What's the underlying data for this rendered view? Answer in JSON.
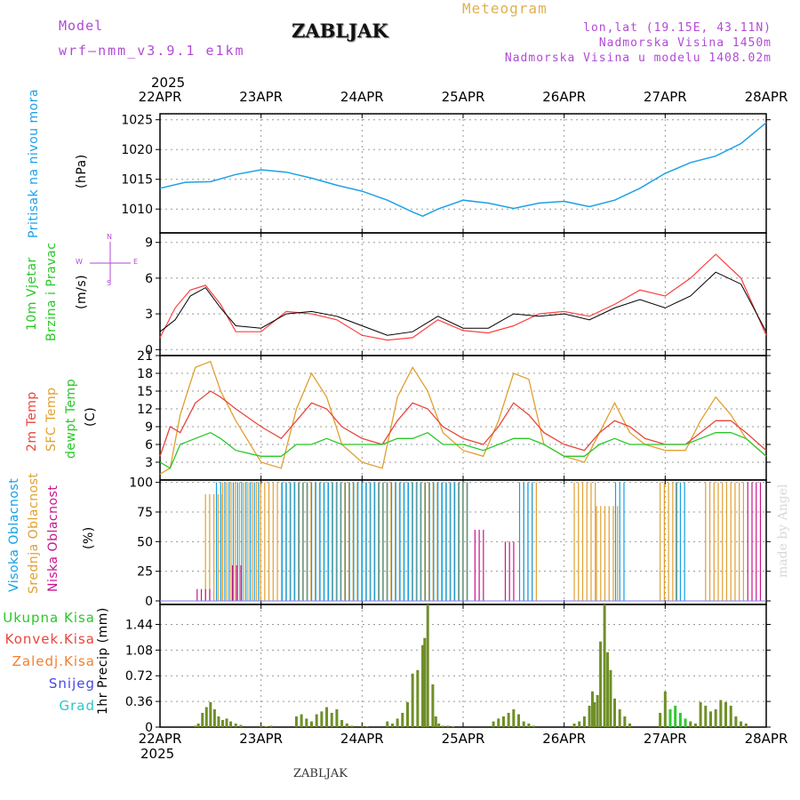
{
  "header": {
    "model_label": "Model",
    "model_name": "wrf–nmm_v3.9.1  e1km",
    "station": "ZABLJAK",
    "meteogram": "Meteogram",
    "lonlat": "lon,lat (19.15E, 43.11N)",
    "elevation": "Nadmorska Visina 1450m",
    "model_elevation": "Nadmorska Visina u modelu 1408.02m",
    "year_top": "2025",
    "year_bottom": "2025",
    "footer_station": "ZABLJAK",
    "credit": "made by Angel"
  },
  "colors": {
    "pressure": "#1ea0e6",
    "temp2m": "#e8463c",
    "sfc": "#e0a030",
    "dewpt": "#28c828",
    "wind_speed": "#000000",
    "gust": "#ff4040",
    "low_cloud": "#c8148c",
    "mid_cloud": "#e0a030",
    "high_cloud": "#14a0e6",
    "precip_total": "#32c832",
    "precip_conv": "#c83c3c",
    "header_purple": "#b14ad6",
    "header_gold": "#e0b050"
  },
  "chart_data": [
    {
      "type": "line",
      "id": "pressure",
      "ylabel": "Pritisak na nivou mora",
      "unit": "(hPa)",
      "x_ticks": [
        "22APR",
        "23APR",
        "24APR",
        "25APR",
        "26APR",
        "27APR",
        "28APR"
      ],
      "ylim": [
        1006,
        1026
      ],
      "yticks": [
        1010,
        1015,
        1020,
        1025
      ],
      "x": [
        0,
        0.25,
        0.5,
        0.75,
        1.0,
        1.25,
        1.5,
        1.75,
        2.0,
        2.25,
        2.5,
        2.6,
        2.75,
        3.0,
        3.25,
        3.5,
        3.75,
        4.0,
        4.25,
        4.5,
        4.75,
        5.0,
        5.25,
        5.5,
        5.75,
        6.0
      ],
      "series": [
        {
          "name": "Pritisak na nivou mora",
          "values": [
            1013.5,
            1014.5,
            1014.6,
            1015.8,
            1016.6,
            1016.2,
            1015.2,
            1014.0,
            1013.0,
            1011.5,
            1009.5,
            1008.8,
            1010.0,
            1011.5,
            1011.0,
            1010.1,
            1011.0,
            1011.3,
            1010.4,
            1011.5,
            1013.5,
            1016.0,
            1017.8,
            1018.9,
            1021.0,
            1024.5
          ]
        }
      ],
      "grid": true
    },
    {
      "type": "line",
      "id": "wind",
      "ylabel": "10m Vjetar",
      "ylabel2": "Brzina i Pravac",
      "unit": "(m/s)",
      "compass": {
        "n": "N",
        "s": "S",
        "w": "W",
        "e": "E"
      },
      "ylim": [
        -0.5,
        9.8
      ],
      "yticks": [
        0,
        3,
        6,
        9
      ],
      "x": [
        0,
        0.15,
        0.3,
        0.45,
        0.6,
        0.75,
        1.0,
        1.25,
        1.5,
        1.75,
        2.0,
        2.25,
        2.5,
        2.75,
        3.0,
        3.25,
        3.5,
        3.75,
        4.0,
        4.25,
        4.5,
        4.75,
        5.0,
        5.25,
        5.5,
        5.75,
        6.0
      ],
      "series": [
        {
          "name": "Wind speed",
          "values": [
            1.5,
            2.5,
            4.5,
            5.2,
            3.5,
            2.0,
            1.8,
            3.0,
            3.2,
            2.8,
            2.0,
            1.2,
            1.5,
            2.8,
            1.8,
            1.8,
            3.0,
            2.8,
            3.0,
            2.5,
            3.5,
            4.2,
            3.5,
            4.5,
            6.5,
            5.5,
            1.5
          ]
        },
        {
          "name": "Gust",
          "values": [
            1.0,
            3.5,
            5.0,
            5.4,
            3.8,
            1.5,
            1.5,
            3.2,
            3.0,
            2.5,
            1.2,
            0.8,
            1.0,
            2.5,
            1.6,
            1.4,
            2.0,
            3.0,
            3.2,
            2.8,
            3.8,
            5.0,
            4.5,
            6.0,
            8.0,
            6.0,
            1.2
          ]
        }
      ],
      "grid": true
    },
    {
      "type": "line",
      "id": "temperature",
      "ylabel": "2m Temp",
      "ylabel2": "SFC Temp",
      "ylabel3": "dewpt Temp",
      "unit": "(C)",
      "ylim": [
        0,
        21
      ],
      "yticks": [
        3,
        6,
        9,
        12,
        15,
        18,
        21
      ],
      "x": [
        0,
        0.1,
        0.2,
        0.35,
        0.5,
        0.6,
        0.75,
        1.0,
        1.2,
        1.35,
        1.5,
        1.65,
        1.8,
        2.0,
        2.2,
        2.35,
        2.5,
        2.65,
        2.8,
        3.0,
        3.2,
        3.35,
        3.5,
        3.65,
        3.8,
        4.0,
        4.2,
        4.35,
        4.5,
        4.65,
        4.8,
        5.0,
        5.2,
        5.35,
        5.5,
        5.65,
        5.8,
        6.0
      ],
      "series": [
        {
          "name": "2m Temp",
          "values": [
            4,
            9,
            8,
            13,
            15,
            14,
            12,
            9,
            7,
            10,
            13,
            12,
            9,
            7,
            6,
            10,
            13,
            12,
            9,
            7,
            6,
            9,
            13,
            11,
            8,
            6,
            5,
            8,
            10,
            9,
            7,
            6,
            6,
            8,
            10,
            10,
            8,
            5
          ]
        },
        {
          "name": "SFC Temp",
          "values": [
            1,
            2,
            11,
            19,
            20,
            15,
            10,
            3,
            2,
            12,
            18,
            14,
            6,
            3,
            2,
            14,
            19,
            15,
            8,
            5,
            4,
            10,
            18,
            17,
            6,
            4,
            3,
            8,
            13,
            8,
            6,
            5,
            5,
            10,
            14,
            11,
            7,
            4
          ]
        },
        {
          "name": "dewpt Temp",
          "values": [
            3,
            2,
            6,
            7,
            8,
            7,
            5,
            4,
            4,
            6,
            6,
            7,
            6,
            6,
            6,
            7,
            7,
            8,
            6,
            6,
            5,
            6,
            7,
            7,
            6,
            4,
            4,
            6,
            7,
            6,
            6,
            6,
            6,
            7,
            8,
            8,
            7,
            4
          ]
        }
      ],
      "grid": true
    },
    {
      "type": "bar",
      "id": "clouds",
      "ylabel": "Visoka Oblacnost",
      "ylabel2": "Srednja Oblacnost",
      "ylabel3": "Niska Oblacnost",
      "unit": "(%)",
      "ylim": [
        -3,
        102
      ],
      "yticks": [
        0,
        25,
        50,
        75,
        100
      ],
      "note": "hourly cloud cover; values read approximately",
      "series": [
        {
          "name": "Srednja Oblacnost",
          "segments": [
            [
              0.45,
              0.62,
              90
            ],
            [
              0.62,
              3.05,
              100
            ],
            [
              3.6,
              3.75,
              100
            ],
            [
              4.1,
              4.32,
              100
            ],
            [
              4.32,
              4.55,
              80
            ],
            [
              4.95,
              5.15,
              100
            ],
            [
              5.4,
              5.8,
              100
            ]
          ]
        },
        {
          "name": "Visoka Oblacnost",
          "segments": [
            [
              0.55,
              1.0,
              100
            ],
            [
              1.2,
              3.05,
              100
            ],
            [
              3.55,
              3.7,
              100
            ],
            [
              4.5,
              4.6,
              100
            ],
            [
              5.1,
              5.2,
              100
            ]
          ]
        },
        {
          "name": "Niska Oblacnost",
          "segments": [
            [
              0.35,
              0.5,
              10
            ],
            [
              0.7,
              0.8,
              30
            ],
            [
              3.1,
              3.2,
              60
            ],
            [
              3.4,
              3.5,
              50
            ],
            [
              5.8,
              5.95,
              100
            ]
          ]
        }
      ],
      "grid": true
    },
    {
      "type": "bar",
      "id": "precip",
      "ylabel": "1hr Precip (mm)",
      "legend": [
        "Ukupna Kisa",
        "Konvek.Kisa",
        "Zaledj.Kisa",
        "Snijeg",
        "Grad"
      ],
      "ylim": [
        0,
        1.72
      ],
      "yticks": [
        0,
        0.36,
        0.72,
        1.08,
        1.44
      ],
      "x_ticks": [
        "22APR",
        "23APR",
        "24APR",
        "25APR",
        "26APR",
        "27APR",
        "28APR"
      ],
      "x": [
        0.35,
        0.38,
        0.42,
        0.46,
        0.5,
        0.54,
        0.58,
        0.62,
        0.66,
        0.7,
        0.75,
        0.8,
        1.0,
        1.05,
        1.1,
        1.35,
        1.4,
        1.45,
        1.5,
        1.55,
        1.6,
        1.65,
        1.7,
        1.75,
        1.8,
        1.85,
        1.9,
        2.0,
        2.05,
        2.25,
        2.3,
        2.35,
        2.4,
        2.45,
        2.5,
        2.55,
        2.6,
        2.62,
        2.65,
        2.7,
        2.73,
        2.76,
        2.8,
        2.85,
        2.9,
        3.3,
        3.35,
        3.4,
        3.45,
        3.5,
        3.55,
        3.6,
        3.65,
        3.7,
        4.1,
        4.15,
        4.2,
        4.25,
        4.28,
        4.3,
        4.33,
        4.36,
        4.4,
        4.43,
        4.46,
        4.5,
        4.55,
        4.6,
        4.65,
        4.95,
        5.0,
        5.05,
        5.1,
        5.15,
        5.2,
        5.25,
        5.3,
        5.35,
        5.4,
        5.45,
        5.5,
        5.55,
        5.6,
        5.65,
        5.7,
        5.75,
        5.8
      ],
      "series": [
        {
          "name": "Ukupna Kisa",
          "values": [
            0.02,
            0.05,
            0.2,
            0.28,
            0.35,
            0.25,
            0.15,
            0.1,
            0.12,
            0.08,
            0.05,
            0.03,
            0.02,
            0.01,
            0.02,
            0.15,
            0.18,
            0.12,
            0.08,
            0.18,
            0.22,
            0.28,
            0.2,
            0.25,
            0.1,
            0.05,
            0.02,
            0.02,
            0.01,
            0.08,
            0.05,
            0.12,
            0.2,
            0.35,
            0.75,
            0.8,
            1.15,
            1.25,
            1.72,
            0.6,
            0.15,
            0.05,
            0.02,
            0.02,
            0.01,
            0.08,
            0.12,
            0.15,
            0.2,
            0.25,
            0.18,
            0.08,
            0.05,
            0.02,
            0.05,
            0.08,
            0.15,
            0.3,
            0.5,
            0.35,
            0.45,
            1.2,
            1.82,
            1.05,
            0.8,
            0.4,
            0.25,
            0.15,
            0.05,
            0.2,
            0.5,
            0.25,
            0.3,
            0.2,
            0.12,
            0.08,
            0.05,
            0.35,
            0.3,
            0.22,
            0.25,
            0.38,
            0.35,
            0.3,
            0.15,
            0.08,
            0.05
          ]
        }
      ],
      "grid": true
    }
  ]
}
